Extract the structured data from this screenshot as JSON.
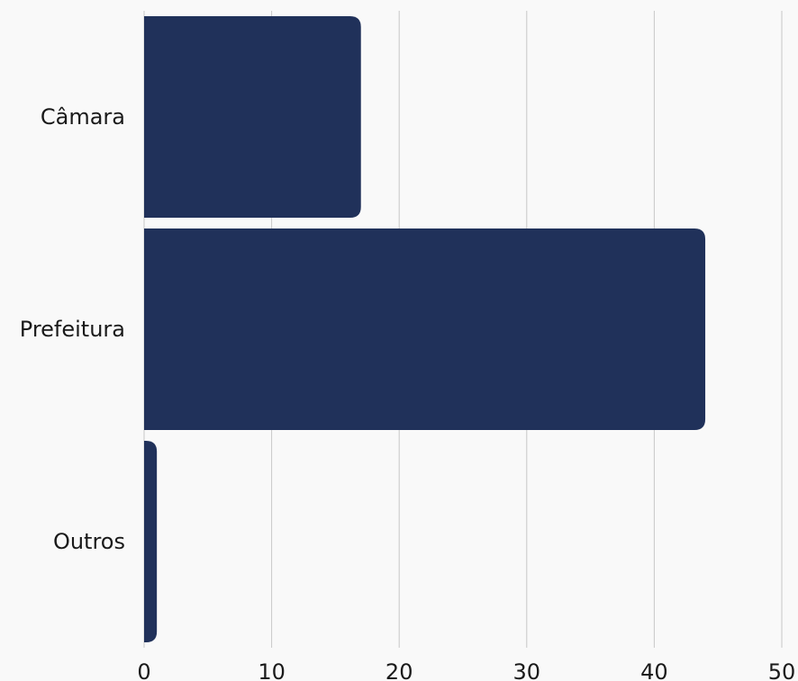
{
  "chart_data": {
    "type": "bar",
    "orientation": "horizontal",
    "categories": [
      "Câmara",
      "Prefeitura",
      "Outros"
    ],
    "values": [
      17,
      44,
      1
    ],
    "xlim": [
      0,
      50
    ],
    "xticks": [
      "0",
      "10",
      "20",
      "30",
      "40",
      "50"
    ],
    "title": "",
    "xlabel": "",
    "ylabel": "",
    "grid": "vertical",
    "legend": "none",
    "bar_color": "#20315a"
  }
}
